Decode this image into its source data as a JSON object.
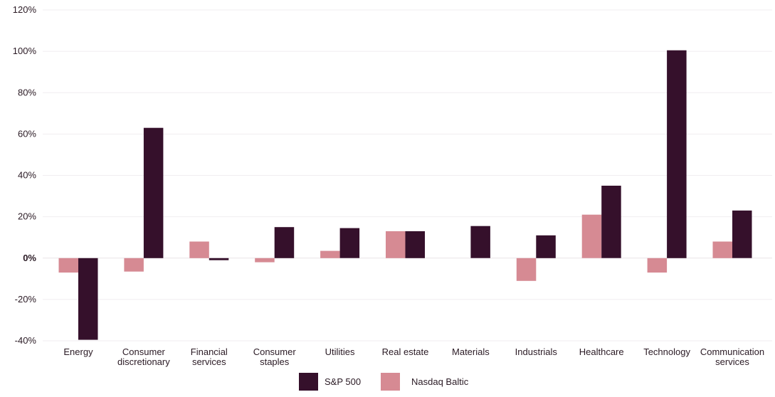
{
  "chart_data": {
    "type": "bar",
    "title": "",
    "xlabel": "",
    "ylabel": "",
    "ylim": [
      -40,
      120
    ],
    "yticks": [
      -40,
      -20,
      0,
      20,
      40,
      60,
      80,
      100,
      120
    ],
    "ytick_labels": [
      "-40%",
      "-20%",
      "0%",
      "20%",
      "40%",
      "60%",
      "80%",
      "100%",
      "120%"
    ],
    "grid": true,
    "legend_position": "bottom-center",
    "categories": [
      [
        "Energy"
      ],
      [
        "Consumer",
        "discretionary"
      ],
      [
        "Financial",
        "services"
      ],
      [
        "Consumer",
        "staples"
      ],
      [
        "Utilities"
      ],
      [
        "Real estate"
      ],
      [
        "Materials"
      ],
      [
        "Industrials"
      ],
      [
        "Healthcare"
      ],
      [
        "Technology"
      ],
      [
        "Communication",
        "services"
      ]
    ],
    "series": [
      {
        "name": "Nasdaq Baltic",
        "color": "#d68a93",
        "values": [
          -7,
          -6.5,
          8,
          -2,
          3.5,
          13,
          0,
          -11,
          21,
          -7,
          8
        ]
      },
      {
        "name": "S&P 500",
        "color": "#35102b",
        "values": [
          -39.5,
          63,
          -1,
          15,
          14.5,
          13,
          15.5,
          11,
          35,
          100.5,
          23
        ]
      }
    ],
    "legend_order": [
      "S&P 500",
      "Nasdaq Baltic"
    ]
  }
}
